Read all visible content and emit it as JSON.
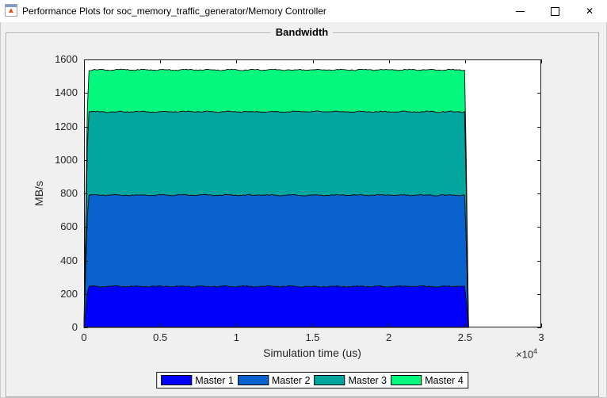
{
  "window": {
    "title": "Performance Plots for soc_memory_traffic_generator/Memory Controller",
    "app_icon": "matlab-figure-icon",
    "controls": {
      "close": "✕"
    }
  },
  "panel": {
    "title": "Bandwidth"
  },
  "colors": {
    "figure_bg": "#f0f0f0",
    "titlebar_bg": "#ffffff",
    "plot_bg": "#ffffff",
    "axis": "#1a1a1a",
    "panel_border": "#a9a9a9",
    "area_edge": "#101010"
  },
  "chart_data": {
    "type": "area",
    "stacked": true,
    "title": "Bandwidth",
    "xlabel": "Simulation time (us)",
    "ylabel": "MB/s",
    "xlim": [
      0,
      30000
    ],
    "ylim": [
      0,
      1600
    ],
    "grid": false,
    "legend_position": "below-axes",
    "x_ticks": [
      0,
      5000,
      10000,
      15000,
      20000,
      25000,
      30000
    ],
    "x_tick_labels": [
      "0",
      "0.5",
      "1",
      "1.5",
      "2",
      "2.5",
      "3"
    ],
    "x_axis_exponent": {
      "base": "×10",
      "power": "4"
    },
    "y_ticks": [
      0,
      200,
      400,
      600,
      800,
      1000,
      1200,
      1400,
      1600
    ],
    "series": [
      {
        "name": "Master 1",
        "color": "#0101FB",
        "value": 245
      },
      {
        "name": "Master 2",
        "color": "#0A62CF",
        "value": 545
      },
      {
        "name": "Master 3",
        "color": "#03A69E",
        "value": 498
      },
      {
        "name": "Master 4",
        "color": "#04F87E",
        "value": 250
      }
    ],
    "cumulative_tops": [
      245,
      790,
      1288,
      1538
    ],
    "ramp_end": 260,
    "data_end": 25000,
    "fall_end": 25230,
    "noise_amplitude_mbps": 5
  }
}
